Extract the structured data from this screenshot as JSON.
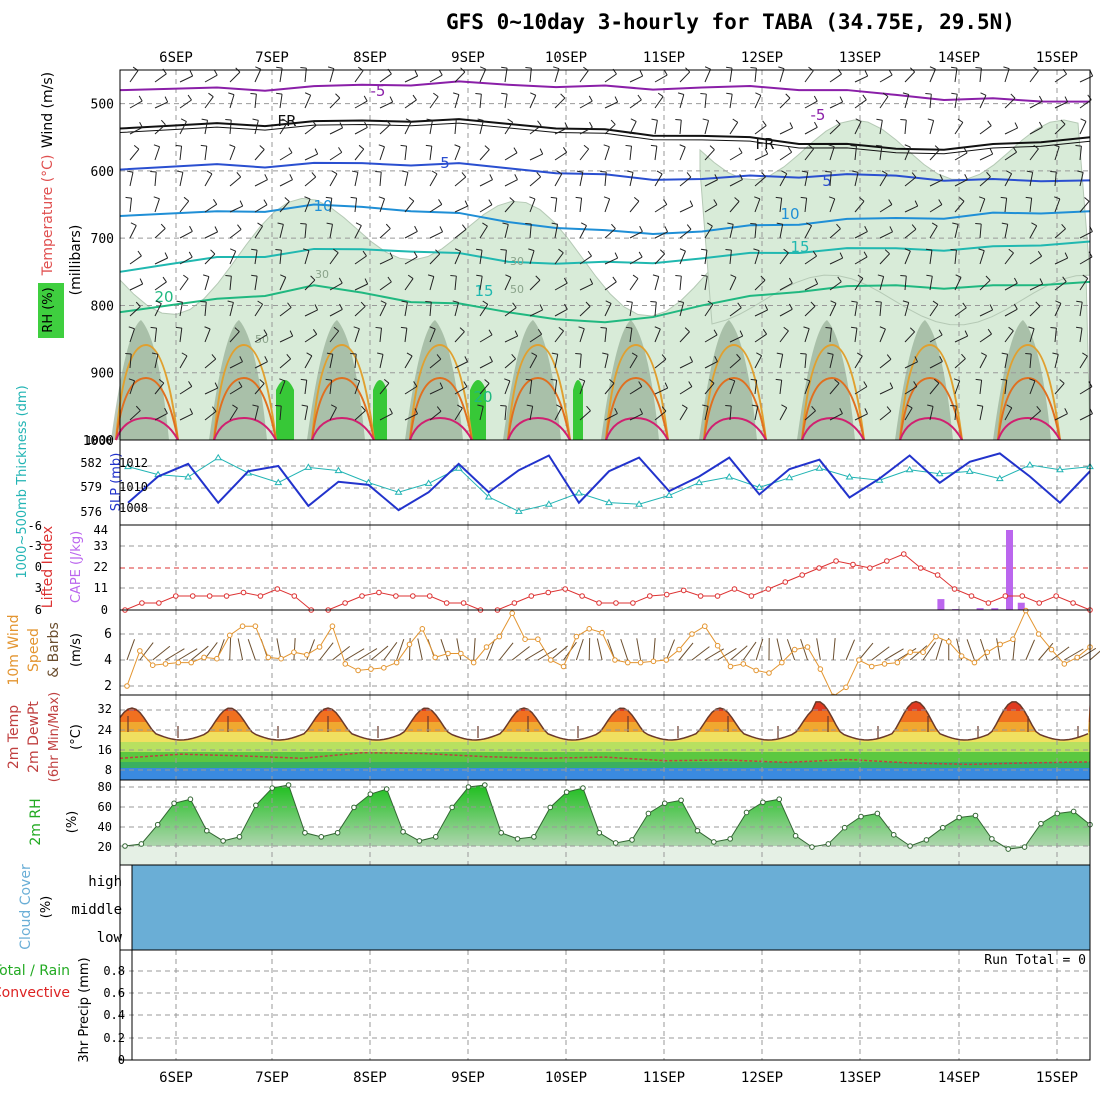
{
  "title": "GFS 0~10day 3-hourly for TABA (34.75E, 29.5N)",
  "dates": [
    "6SEP",
    "7SEP",
    "8SEP",
    "9SEP",
    "10SEP",
    "11SEP",
    "12SEP",
    "13SEP",
    "14SEP",
    "15SEP"
  ],
  "colors": {
    "grid": "#999999",
    "rh_fill": "#d8ebd8",
    "rh_dark": "#8aa38a",
    "bright_green": "#37c837",
    "slp": "#2233cc",
    "thick": "#22b4b4",
    "li": "#dd3333",
    "cape": "#bb66ee",
    "wind10": "#e39530",
    "cloud": "#6aaed6",
    "rh2m": "#22aa22",
    "precip_label_conv": "#dd2222"
  },
  "panels": {
    "upper": {
      "ylabel_wind": "Wind (m/s)",
      "ylabel_temp": "Temperature (°C)",
      "ylabel_rh": "RH (%)",
      "ylabel_units": "(millibars)",
      "pressure_ticks": [
        "500",
        "600",
        "700",
        "800",
        "900",
        "1000"
      ],
      "contour_labels": [
        "-5",
        "-5",
        "FR",
        "FR",
        "5",
        "5",
        "10",
        "10",
        "15",
        "15",
        "20",
        "20",
        "30",
        "30",
        "50",
        "50"
      ],
      "temperature_levels": [
        {
          "label": "-5",
          "color": "#8a1fa8",
          "pressure": [
            480,
            476,
            474,
            473,
            472,
            473,
            476,
            480,
            487,
            492,
            497
          ]
        },
        {
          "label": "FR",
          "color": "#111111",
          "pressure": [
            537,
            529,
            526,
            527,
            530,
            538,
            548,
            560,
            567,
            560,
            550
          ]
        },
        {
          "label": "5",
          "color": "#2a4fd0",
          "pressure": [
            598,
            590,
            588,
            592,
            596,
            605,
            612,
            610,
            607,
            612,
            614
          ]
        },
        {
          "label": "10",
          "color": "#1f8fd6",
          "pressure": [
            667,
            660,
            650,
            660,
            676,
            688,
            690,
            680,
            670,
            662,
            660
          ]
        },
        {
          "label": "15",
          "color": "#20b8b0",
          "pressure": [
            750,
            728,
            716,
            720,
            735,
            735,
            730,
            722,
            715,
            712,
            705
          ]
        },
        {
          "label": "20",
          "color": "#20b880",
          "pressure": [
            810,
            790,
            770,
            795,
            810,
            825,
            800,
            780,
            770,
            770,
            765
          ]
        }
      ]
    },
    "slp": {
      "ylabel_thick": "1000~500mb Thickness (dm)",
      "ylabel_slp": "SLP (mb)",
      "thick_ticks": [
        "582",
        "579",
        "576"
      ],
      "slp_ticks": [
        "1012",
        "1010",
        "1008"
      ],
      "slp_values": [
        1008.5,
        1011.0,
        1012.2,
        1008.5,
        1011.5,
        1012.0,
        1008.2,
        1010.5,
        1010.2,
        1007.8,
        1009.5,
        1012.2,
        1009.5,
        1011.6,
        1013.0,
        1008.5,
        1011.5,
        1012.8,
        1009.6,
        1011.0,
        1012.8,
        1009.3,
        1011.7,
        1012.6,
        1009.0,
        1010.8,
        1013.0,
        1010.4,
        1012.4,
        1013.2,
        1011.0,
        1008.5,
        1011.5
      ],
      "thick_values": [
        581.8,
        580.8,
        580.5,
        582.9,
        581.0,
        579.8,
        581.7,
        581.3,
        579.8,
        578.6,
        579.7,
        581.6,
        578.0,
        576.2,
        577.1,
        578.5,
        577.3,
        577.1,
        578.2,
        579.8,
        580.5,
        579.2,
        580.4,
        581.6,
        580.5,
        580.1,
        581.4,
        580.9,
        581.2,
        580.3,
        582.0,
        581.4,
        581.8
      ]
    },
    "cape": {
      "ylabel_li": "Lifted Index",
      "ylabel_cape": "CAPE (J/kg)",
      "li_ticks": [
        "-6",
        "-3",
        "0",
        "3",
        "6"
      ],
      "cape_ticks": [
        "44",
        "33",
        "22",
        "11",
        "0"
      ],
      "li_values": [
        6,
        5,
        5,
        4,
        4,
        4,
        4,
        3.5,
        4,
        3,
        4,
        6,
        6,
        5,
        4,
        3.5,
        4,
        4,
        4,
        5,
        5,
        6,
        6,
        5,
        4,
        3.5,
        3,
        4,
        5,
        5,
        5,
        4,
        3.8,
        3.2,
        4,
        4,
        3,
        4,
        3,
        2,
        1,
        0,
        -1,
        -0.5,
        0,
        -1,
        -2,
        0,
        1,
        3,
        4,
        5,
        4,
        4,
        5,
        4,
        5,
        6
      ],
      "cape_values": [
        {
          "t": 7.8,
          "v": 6
        },
        {
          "t": 7.95,
          "v": 0.5
        },
        {
          "t": 8.2,
          "v": 1
        },
        {
          "t": 8.35,
          "v": 1
        },
        {
          "t": 8.5,
          "v": 44
        },
        {
          "t": 8.62,
          "v": 4
        }
      ]
    },
    "wind10": {
      "ylabel": "10m Wind Speed & Barbs (m/s)",
      "ticks": [
        "6",
        "4",
        "2"
      ],
      "speed_values": [
        2,
        4.7,
        3.6,
        3.7,
        3.8,
        3.8,
        4.2,
        4.1,
        5.9,
        6.6,
        6.6,
        4.2,
        4.1,
        4.6,
        4.4,
        5,
        6.6,
        3.7,
        3.2,
        3.3,
        3.4,
        3.8,
        5.2,
        6.4,
        4.2,
        4.5,
        4.5,
        3.8,
        5,
        5.8,
        7.6,
        5.6,
        5.6,
        4,
        3.5,
        5.8,
        6.4,
        6.1,
        4,
        3.8,
        3.8,
        3.9,
        4,
        4.8,
        6,
        6.6,
        5.1,
        3.5,
        3.7,
        3.2,
        3,
        3.8,
        4.8,
        5,
        3.3,
        1.2,
        1.9,
        4,
        3.5,
        3.7,
        3.8,
        4.6,
        4.6,
        5.8,
        5.4,
        4.3,
        3.8,
        4.6,
        5.2,
        5.6,
        7.8,
        6,
        4.8,
        3.7,
        4.2,
        5
      ]
    },
    "temp2m": {
      "ylabel": "2m Temp 2m DewPt (6hr Min/Max) (°C)",
      "ticks": [
        "32",
        "24",
        "16",
        "8"
      ],
      "max_values": [
        30,
        33
      ],
      "dewpt_values": [
        14.5,
        16.2,
        15.5,
        14.5,
        16.8,
        16.5,
        15.2,
        14.5,
        15,
        13.5,
        13.8,
        12.8,
        14,
        12.6,
        12,
        12.6,
        13
      ]
    },
    "rh2m": {
      "ylabel": "2m RH (%)",
      "ticks": [
        "80",
        "60",
        "40",
        "20"
      ],
      "values": [
        20,
        22,
        41,
        62,
        66,
        35,
        25,
        29,
        60,
        77,
        80,
        33,
        29,
        33,
        58,
        71,
        76,
        34,
        25,
        29,
        58,
        78,
        80,
        33,
        27,
        29,
        58,
        73,
        77,
        33,
        23,
        26,
        52,
        62,
        65,
        35,
        24,
        27,
        53,
        63,
        66,
        30,
        19,
        22,
        38,
        49,
        52,
        31,
        20,
        26,
        38,
        48,
        50,
        27,
        17,
        19,
        42,
        52,
        54,
        41
      ]
    },
    "cloud": {
      "ylabel": "Cloud Cover (%)",
      "levels": [
        "high",
        "middle",
        "low"
      ]
    },
    "precip": {
      "ylabel_total": "Total / Rain",
      "ylabel_conv": "Convective",
      "ylabel_units": "3hr Precip (mm)",
      "ticks": [
        "0.8",
        "0.6",
        "0.4",
        "0.2",
        "0"
      ],
      "run_total": "Run Total = 0"
    }
  }
}
